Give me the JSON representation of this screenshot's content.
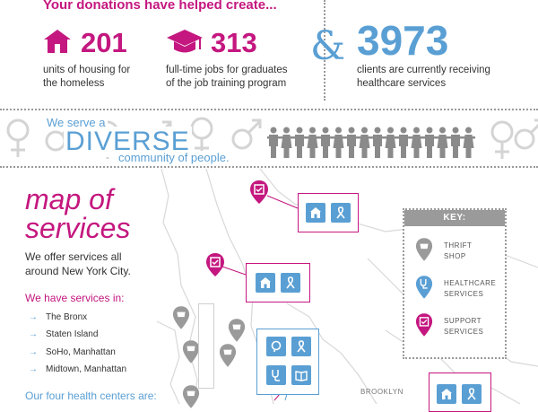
{
  "header": {
    "headline": "Your donations have helped create...",
    "stats": [
      {
        "icon": "house-icon",
        "number": "201",
        "caption_line1": "units of housing for",
        "caption_line2": "the homeless"
      },
      {
        "icon": "graduation-cap-icon",
        "number": "313",
        "caption_line1": "full-time jobs for graduates",
        "caption_line2": "of the job training program"
      },
      {
        "number": "3973",
        "caption_line1": "clients are currently receiving",
        "caption_line2": "healthcare services"
      }
    ],
    "ampersand": "&"
  },
  "diversity": {
    "line1": "We serve a",
    "line2": "DIVERSE",
    "line3": "community of people.",
    "people_count": 16
  },
  "map": {
    "title_line1": "map of",
    "title_line2": "services",
    "intro_line1": "We offer services all",
    "intro_line2": "around New York City.",
    "locations_heading": "We have services in:",
    "locations": [
      "The Bronx",
      "Staten Island",
      "SoHo, Manhattan",
      "Midtown, Manhattan"
    ],
    "health_heading": "Our four health centers are:",
    "brooklyn_label": "BROOKLYN",
    "key": {
      "title": "KEY:",
      "items": [
        {
          "icon": "thrift-shop-pin-icon",
          "line1": "THRIFT",
          "line2": "SHOP"
        },
        {
          "icon": "healthcare-pin-icon",
          "line1": "HEALTHCARE",
          "line2": "SERVICES"
        },
        {
          "icon": "support-pin-icon",
          "line1": "SUPPORT",
          "line2": "SERVICES"
        }
      ]
    }
  },
  "colors": {
    "magenta": "#c4177f",
    "blue": "#5a9fd4",
    "gray": "#9a9a9a"
  }
}
